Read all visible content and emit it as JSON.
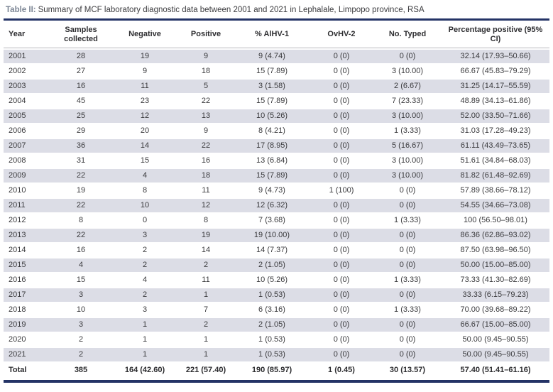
{
  "colors": {
    "rule_navy": "#243366",
    "row_shade": "#dcdde6",
    "title_label_gray": "#7c8695"
  },
  "table": {
    "title_label": "Table II:",
    "title_text": "Summary of MCF laboratory diagnostic data between 2001 and 2021 in Lephalale, Limpopo province, RSA",
    "columns": [
      "Year",
      "Samples collected",
      "Negative",
      "Positive",
      "% AlHV-1",
      "OvHV-2",
      "No. Typed",
      "Percentage positive (95% CI)"
    ],
    "rows": [
      [
        "2001",
        "28",
        "19",
        "9",
        "9 (4.74)",
        "0 (0)",
        "0 (0)",
        "32.14 (17.93–50.66)"
      ],
      [
        "2002",
        "27",
        "9",
        "18",
        "15 (7.89)",
        "0 (0)",
        "3 (10.00)",
        "66.67 (45.83–79.29)"
      ],
      [
        "2003",
        "16",
        "11",
        "5",
        "3 (1.58)",
        "0 (0)",
        "2 (6.67)",
        "31.25 (14.17–55.59)"
      ],
      [
        "2004",
        "45",
        "23",
        "22",
        "15 (7.89)",
        "0 (0)",
        "7 (23.33)",
        "48.89 (34.13–61.86)"
      ],
      [
        "2005",
        "25",
        "12",
        "13",
        "10 (5.26)",
        "0 (0)",
        "3 (10.00)",
        "52.00 (33.50–71.66)"
      ],
      [
        "2006",
        "29",
        "20",
        "9",
        "8 (4.21)",
        "0 (0)",
        "1 (3.33)",
        "31.03 (17.28–49.23)"
      ],
      [
        "2007",
        "36",
        "14",
        "22",
        "17 (8.95)",
        "0 (0)",
        "5 (16.67)",
        "61.11 (43.49–73.65)"
      ],
      [
        "2008",
        "31",
        "15",
        "16",
        "13 (6.84)",
        "0 (0)",
        "3 (10.00)",
        "51.61 (34.84–68.03)"
      ],
      [
        "2009",
        "22",
        "4",
        "18",
        "15 (7.89)",
        "0 (0)",
        "3 (10.00)",
        "81.82 (61.48–92.69)"
      ],
      [
        "2010",
        "19",
        "8",
        "11",
        "9 (4.73)",
        "1 (100)",
        "0 (0)",
        "57.89 (38.66–78.12)"
      ],
      [
        "2011",
        "22",
        "10",
        "12",
        "12 (6.32)",
        "0 (0)",
        "0 (0)",
        "54.55 (34.66–73.08)"
      ],
      [
        "2012",
        "8",
        "0",
        "8",
        "7 (3.68)",
        "0 (0)",
        "1 (3.33)",
        "100 (56.50–98.01)"
      ],
      [
        "2013",
        "22",
        "3",
        "19",
        "19 (10.00)",
        "0 (0)",
        "0 (0)",
        "86.36 (62.86–93.02)"
      ],
      [
        "2014",
        "16",
        "2",
        "14",
        "14 (7.37)",
        "0 (0)",
        "0 (0)",
        "87.50 (63.98–96.50)"
      ],
      [
        "2015",
        "4",
        "2",
        "2",
        "2 (1.05)",
        "0 (0)",
        "0 (0)",
        "50.00 (15.00–85.00)"
      ],
      [
        "2016",
        "15",
        "4",
        "11",
        "10 (5.26)",
        "0 (0)",
        "1 (3.33)",
        "73.33 (41.30–82.69)"
      ],
      [
        "2017",
        "3",
        "2",
        "1",
        "1 (0.53)",
        "0 (0)",
        "0 (0)",
        "33.33 (6.15–79.23)"
      ],
      [
        "2018",
        "10",
        "3",
        "7",
        "6 (3.16)",
        "0 (0)",
        "1 (3.33)",
        "70.00 (39.68–89.22)"
      ],
      [
        "2019",
        "3",
        "1",
        "2",
        "2 (1.05)",
        "0 (0)",
        "0 (0)",
        "66.67 (15.00–85.00)"
      ],
      [
        "2020",
        "2",
        "1",
        "1",
        "1 (0.53)",
        "0 (0)",
        "0 (0)",
        "50.00 (9.45–90.55)"
      ],
      [
        "2021",
        "2",
        "1",
        "1",
        "1 (0.53)",
        "0 (0)",
        "0 (0)",
        "50.00 (9.45–90.55)"
      ]
    ],
    "total_row": [
      "Total",
      "385",
      "164 (42.60)",
      "221 (57.40)",
      "190 (85.97)",
      "1 (0.45)",
      "30 (13.57)",
      "57.40 (51.41–61.16)"
    ]
  }
}
